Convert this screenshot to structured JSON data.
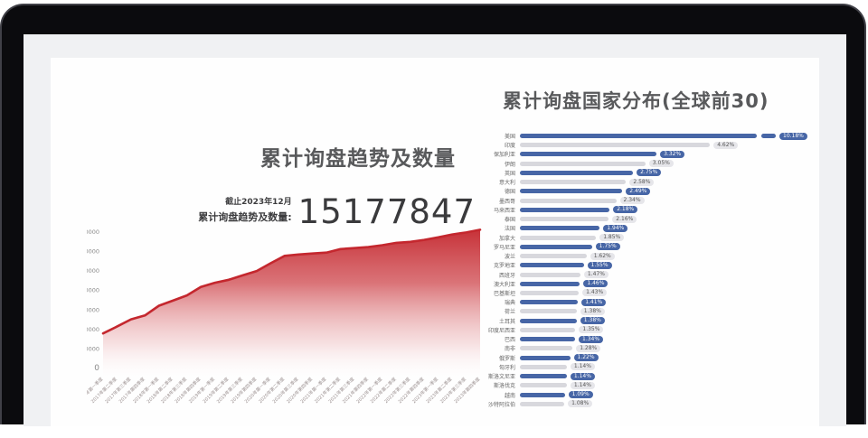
{
  "colors": {
    "trend_red": "#c4272e",
    "bar_blue": "#4766a6",
    "bar_gray": "#d8d8dd",
    "frame_black": "#0b0b0e",
    "screen_gray": "#f0f1f3"
  },
  "trend_chart": {
    "title": "累计询盘趋势及数量",
    "as_of": "截止2023年12月",
    "stat_label": "累计询盘趋势及数量:",
    "stat_value": "15177847"
  },
  "distribution_chart": {
    "title": "累计询盘国家分布(全球前30)"
  },
  "chart_data": [
    {
      "type": "area",
      "title": "累计询盘趋势及数量",
      "annotations": [
        "截止2023年12月",
        "累计询盘趋势及数量: 15177847"
      ],
      "ylim": [
        0,
        700000
      ],
      "yticks": [
        "700000",
        "600000",
        "500000",
        "400000",
        "300000",
        "200000",
        "100000",
        "0"
      ],
      "grid": false,
      "x": [
        "2017年第一季度",
        "2017年第二季度",
        "2017年第三季度",
        "2017年第四季度",
        "2018年第一季度",
        "2018年第二季度",
        "2018年第三季度",
        "2018年第四季度",
        "2019年第一季度",
        "2019年第二季度",
        "2019年第三季度",
        "2019年第四季度",
        "2020年第一季度",
        "2020年第二季度",
        "2020年第三季度",
        "2020年第四季度",
        "2021年第一季度",
        "2021年第二季度",
        "2021年第三季度",
        "2021年第四季度",
        "2022年第一季度",
        "2022年第二季度",
        "2022年第三季度",
        "2022年第四季度",
        "2023年第一季度",
        "2023年第二季度",
        "2023年第三季度",
        "2023年第四季度"
      ],
      "values": [
        180000,
        215000,
        252000,
        272000,
        322000,
        348000,
        375000,
        418000,
        440000,
        455000,
        478000,
        500000,
        540000,
        578000,
        585000,
        590000,
        595000,
        613000,
        618000,
        623000,
        633000,
        645000,
        650000,
        660000,
        673000,
        688000,
        698000,
        712000
      ]
    },
    {
      "type": "bar",
      "orientation": "horizontal",
      "title": "累计询盘国家分布(全球前30)",
      "legend_position": "none",
      "note": "top bar (美国) drawn with axis break",
      "rows": [
        {
          "name": "美国",
          "value": 10.18,
          "label": "10.18%",
          "break": true
        },
        {
          "name": "印度",
          "value": 4.62,
          "label": "4.62%"
        },
        {
          "name": "保加利亚",
          "value": 3.32,
          "label": "3.32%"
        },
        {
          "name": "伊朗",
          "value": 3.05,
          "label": "3.05%"
        },
        {
          "name": "英国",
          "value": 2.75,
          "label": "2.75%"
        },
        {
          "name": "意大利",
          "value": 2.58,
          "label": "2.58%"
        },
        {
          "name": "德国",
          "value": 2.49,
          "label": "2.49%"
        },
        {
          "name": "墨西哥",
          "value": 2.34,
          "label": "2.34%"
        },
        {
          "name": "马来西亚",
          "value": 2.18,
          "label": "2.18%"
        },
        {
          "name": "泰国",
          "value": 2.16,
          "label": "2.16%"
        },
        {
          "name": "法国",
          "value": 1.94,
          "label": "1.94%"
        },
        {
          "name": "加拿大",
          "value": 1.85,
          "label": "1.85%"
        },
        {
          "name": "罗马尼亚",
          "value": 1.75,
          "label": "1.75%"
        },
        {
          "name": "波兰",
          "value": 1.62,
          "label": "1.62%"
        },
        {
          "name": "克罗地亚",
          "value": 1.55,
          "label": "1.55%"
        },
        {
          "name": "西班牙",
          "value": 1.47,
          "label": "1.47%"
        },
        {
          "name": "澳大利亚",
          "value": 1.46,
          "label": "1.46%"
        },
        {
          "name": "巴基斯坦",
          "value": 1.43,
          "label": "1.43%"
        },
        {
          "name": "瑞典",
          "value": 1.41,
          "label": "1.41%"
        },
        {
          "name": "荷兰",
          "value": 1.38,
          "label": "1.38%"
        },
        {
          "name": "土耳其",
          "value": 1.38,
          "label": "1.38%"
        },
        {
          "name": "印度尼西亚",
          "value": 1.35,
          "label": "1.35%"
        },
        {
          "name": "巴西",
          "value": 1.34,
          "label": "1.34%"
        },
        {
          "name": "南非",
          "value": 1.28,
          "label": "1.28%"
        },
        {
          "name": "俄罗斯",
          "value": 1.22,
          "label": "1.22%"
        },
        {
          "name": "匈牙利",
          "value": 1.14,
          "label": "1.14%"
        },
        {
          "name": "斯洛文尼亚",
          "value": 1.14,
          "label": "1.14%"
        },
        {
          "name": "斯洛伐克",
          "value": 1.14,
          "label": "1.14%"
        },
        {
          "name": "越南",
          "value": 1.09,
          "label": "1.09%"
        },
        {
          "name": "沙特阿拉伯",
          "value": 1.08,
          "label": "1.08%"
        }
      ]
    }
  ]
}
